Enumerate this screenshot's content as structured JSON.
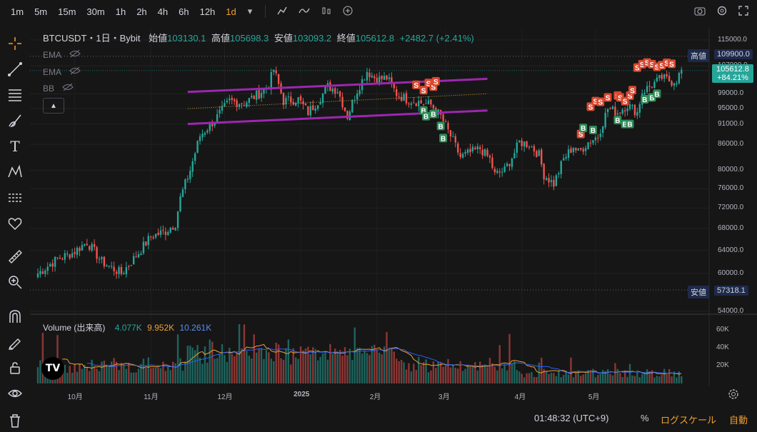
{
  "toolbar": {
    "timeframes": [
      "1m",
      "5m",
      "15m",
      "30m",
      "1h",
      "2h",
      "4h",
      "6h",
      "12h",
      "1d"
    ],
    "active_timeframe": "1d"
  },
  "legend": {
    "symbol": "BTCUSDT・1日・Bybit",
    "open_label": "始値",
    "open": "103130.1",
    "high_label": "高値",
    "high": "105698.3",
    "low_label": "安値",
    "low": "103093.2",
    "close_label": "終値",
    "close": "105612.8",
    "change": "+2482.7 (+2.41%)"
  },
  "indicators": [
    "EMA",
    "EMA",
    "BB"
  ],
  "volume_legend": {
    "label": "Volume (出来高)",
    "v1": "4.077K",
    "v2": "9.952K",
    "v3": "10.261K"
  },
  "price_tags": {
    "high_label": "高値",
    "high_value": "109900.0",
    "current_value": "105612.8",
    "current_change": "+84.21%",
    "low_label": "安値",
    "low_value": "57318.1"
  },
  "bottom_bar": {
    "time": "01:48:32 (UTC+9)",
    "percent": "%",
    "log_scale": "ログスケール",
    "auto": "自動"
  },
  "colors": {
    "up": "#26a69a",
    "down": "#ef5350",
    "channel": "#9c27b0",
    "accent": "#f0a030",
    "volume_ma1": "#f0a030",
    "volume_ma2": "#2962ff"
  },
  "chart_data": {
    "type": "candlestick",
    "symbol": "BTCUSDT",
    "interval": "1d",
    "y_ticks": [
      115000,
      107000,
      99000,
      95000,
      91000,
      86000,
      80000,
      76000,
      72000,
      68000,
      64000,
      60000,
      54000
    ],
    "y_log_scale": true,
    "x_labels": [
      "10月",
      "11月",
      "12月",
      "2025",
      "2月",
      "3月",
      "4月",
      "5月"
    ],
    "x_label_days": [
      15,
      46,
      76,
      107,
      138,
      166,
      197,
      227
    ],
    "volume_ticks": [
      "60K",
      "40K",
      "20K"
    ],
    "volume_tick_values": [
      60000,
      40000,
      20000
    ],
    "anchors": [
      [
        0,
        60000
      ],
      [
        8,
        62500
      ],
      [
        14,
        63500
      ],
      [
        20,
        65500
      ],
      [
        26,
        62000
      ],
      [
        34,
        60000
      ],
      [
        40,
        63000
      ],
      [
        46,
        66500
      ],
      [
        52,
        67500
      ],
      [
        56,
        69000
      ],
      [
        58,
        74000
      ],
      [
        62,
        80000
      ],
      [
        66,
        88000
      ],
      [
        72,
        92000
      ],
      [
        78,
        97000
      ],
      [
        84,
        96500
      ],
      [
        90,
        99000
      ],
      [
        94,
        101500
      ],
      [
        96,
        106000
      ],
      [
        100,
        97000
      ],
      [
        106,
        97500
      ],
      [
        110,
        94000
      ],
      [
        114,
        97000
      ],
      [
        118,
        101000
      ],
      [
        122,
        100000
      ],
      [
        126,
        93000
      ],
      [
        130,
        100000
      ],
      [
        134,
        105500
      ],
      [
        138,
        103000
      ],
      [
        142,
        103500
      ],
      [
        146,
        99000
      ],
      [
        150,
        97500
      ],
      [
        154,
        97000
      ],
      [
        156,
        96500
      ],
      [
        160,
        96000
      ],
      [
        164,
        93000
      ],
      [
        168,
        88000
      ],
      [
        172,
        83000
      ],
      [
        176,
        84000
      ],
      [
        180,
        85000
      ],
      [
        184,
        82500
      ],
      [
        186,
        79000
      ],
      [
        190,
        80000
      ],
      [
        194,
        84000
      ],
      [
        196,
        86500
      ],
      [
        200,
        86000
      ],
      [
        204,
        83500
      ],
      [
        206,
        79000
      ],
      [
        210,
        77000
      ],
      [
        214,
        82500
      ],
      [
        218,
        85500
      ],
      [
        220,
        84000
      ],
      [
        224,
        86500
      ],
      [
        228,
        88000
      ],
      [
        232,
        95000
      ],
      [
        236,
        94000
      ],
      [
        240,
        96000
      ],
      [
        244,
        94000
      ],
      [
        246,
        99500
      ],
      [
        250,
        101500
      ],
      [
        254,
        103500
      ],
      [
        258,
        102500
      ],
      [
        260,
        103000
      ],
      [
        262,
        105600
      ]
    ],
    "channel_upper": [
      [
        61,
        99500
      ],
      [
        183,
        103200
      ]
    ],
    "channel_lower": [
      [
        61,
        91000
      ],
      [
        183,
        94500
      ]
    ],
    "mid_line": [
      [
        61,
        95000
      ],
      [
        183,
        99000
      ]
    ],
    "signals": [
      {
        "type": "S",
        "day": 154,
        "price": 101500
      },
      {
        "type": "S",
        "day": 157,
        "price": 100000
      },
      {
        "type": "S",
        "day": 159,
        "price": 102000
      },
      {
        "type": "S",
        "day": 161,
        "price": 101000
      },
      {
        "type": "S",
        "day": 162,
        "price": 102500
      },
      {
        "type": "B",
        "day": 157,
        "price": 94500
      },
      {
        "type": "B",
        "day": 158,
        "price": 93000
      },
      {
        "type": "B",
        "day": 161,
        "price": 93600
      },
      {
        "type": "B",
        "day": 164,
        "price": 90500
      },
      {
        "type": "B",
        "day": 165,
        "price": 87500
      },
      {
        "type": "S",
        "day": 221,
        "price": 88500
      },
      {
        "type": "S",
        "day": 225,
        "price": 95500
      },
      {
        "type": "S",
        "day": 227,
        "price": 97000
      },
      {
        "type": "S",
        "day": 229,
        "price": 96800
      },
      {
        "type": "S",
        "day": 232,
        "price": 98000
      },
      {
        "type": "S",
        "day": 236,
        "price": 98500
      },
      {
        "type": "S",
        "day": 237,
        "price": 98000
      },
      {
        "type": "S",
        "day": 239,
        "price": 97000
      },
      {
        "type": "S",
        "day": 241,
        "price": 98500
      },
      {
        "type": "S",
        "day": 242,
        "price": 100000
      },
      {
        "type": "S",
        "day": 244,
        "price": 106500
      },
      {
        "type": "S",
        "day": 246,
        "price": 107500
      },
      {
        "type": "S",
        "day": 248,
        "price": 108000
      },
      {
        "type": "S",
        "day": 250,
        "price": 107500
      },
      {
        "type": "S",
        "day": 252,
        "price": 106700
      },
      {
        "type": "S",
        "day": 254,
        "price": 107200
      },
      {
        "type": "S",
        "day": 256,
        "price": 107900
      },
      {
        "type": "S",
        "day": 258,
        "price": 107600
      },
      {
        "type": "B",
        "day": 222,
        "price": 90000
      },
      {
        "type": "B",
        "day": 226,
        "price": 89500
      },
      {
        "type": "B",
        "day": 236,
        "price": 92000
      },
      {
        "type": "B",
        "day": 239,
        "price": 91000
      },
      {
        "type": "B",
        "day": 241,
        "price": 91000
      },
      {
        "type": "B",
        "day": 247,
        "price": 97500
      },
      {
        "type": "B",
        "day": 250,
        "price": 98000
      },
      {
        "type": "B",
        "day": 252,
        "price": 99000
      }
    ]
  }
}
